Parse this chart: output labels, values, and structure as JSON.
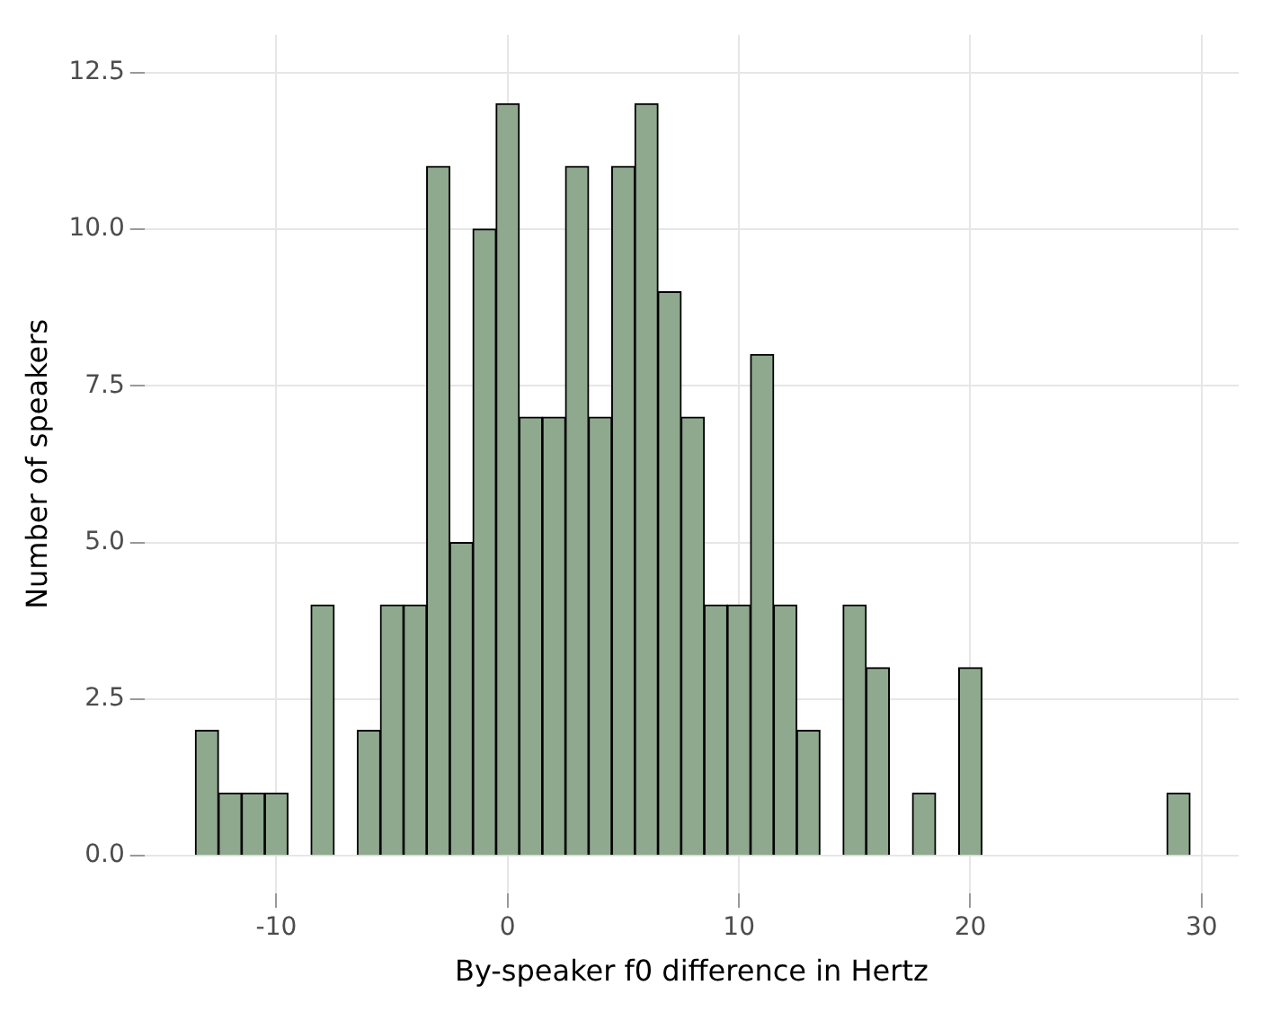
{
  "chart_data": {
    "type": "histogram",
    "xlabel": "By-speaker f0 difference in Hertz",
    "ylabel": "Number of speakers",
    "bins": [
      -13.5,
      -12.5,
      -11.5,
      -10.5,
      -9.5,
      -8.5,
      -7.5,
      -6.5,
      -5.5,
      -4.5,
      -3.5,
      -2.5,
      -1.5,
      -0.5,
      0.5,
      1.5,
      2.5,
      3.5,
      4.5,
      5.5,
      6.5,
      7.5,
      8.5,
      9.5,
      10.5,
      11.5,
      12.5,
      13.5,
      14.5,
      15.5,
      16.5,
      17.5,
      18.5,
      19.5,
      20.5,
      21.5,
      22.5,
      23.5,
      24.5,
      25.5,
      26.5,
      27.5,
      28.5,
      29.5
    ],
    "values": [
      2,
      1,
      1,
      1,
      0,
      4,
      0,
      2,
      4,
      4,
      11,
      5,
      10,
      12,
      7,
      7,
      11,
      7,
      11,
      12,
      9,
      7,
      4,
      4,
      8,
      4,
      2,
      0,
      4,
      3,
      0,
      1,
      0,
      3,
      0,
      0,
      0,
      0,
      0,
      0,
      0,
      0,
      1
    ],
    "color": "#8fa98f",
    "xlim": [
      -15.7,
      31.6
    ],
    "xticks": [
      -10,
      0,
      10,
      20,
      30
    ],
    "ylim": [
      -0.6,
      13.1
    ],
    "yticks": [
      {
        "value": 0,
        "label": "0.0"
      },
      {
        "value": 2.5,
        "label": "2.5"
      },
      {
        "value": 5,
        "label": "5.0"
      },
      {
        "value": 7.5,
        "label": "7.5"
      },
      {
        "value": 10,
        "label": "10.0"
      },
      {
        "value": 12.5,
        "label": "12.5"
      }
    ],
    "grid": true
  }
}
